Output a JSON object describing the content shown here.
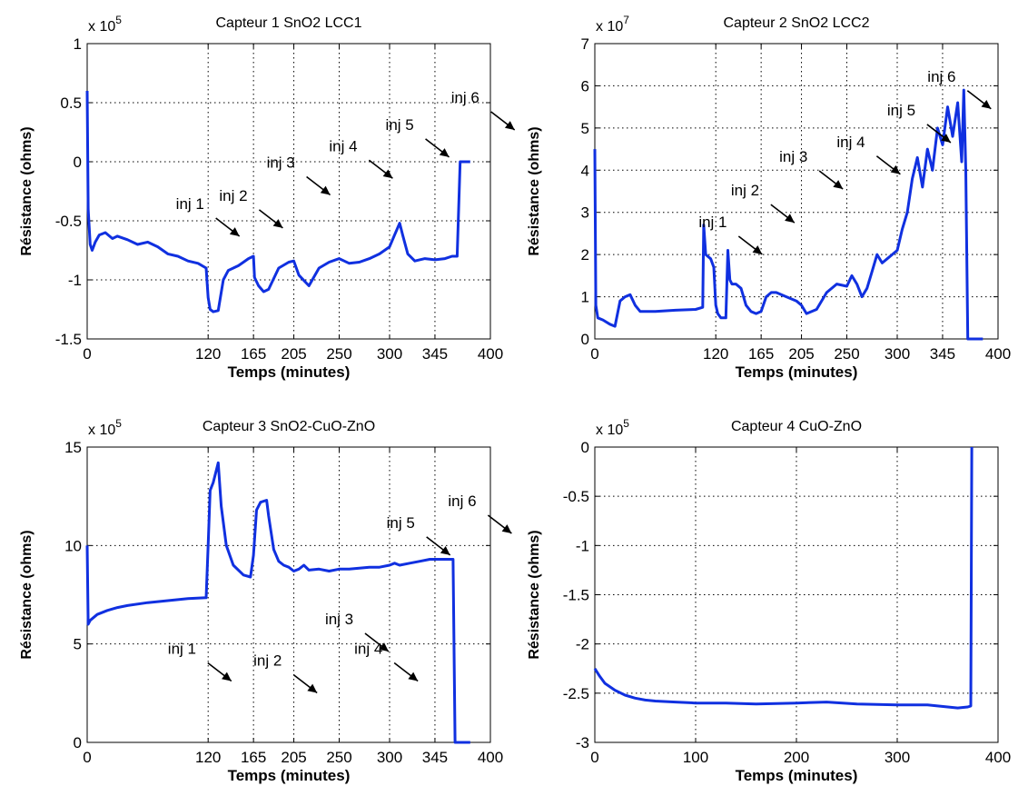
{
  "chart_data": [
    {
      "type": "line",
      "title": "Capteur 1 SnO2 LCC1",
      "exponent": "5",
      "xlabel": "Temps (minutes)",
      "ylabel": "Résistance (ohms)",
      "xlim": [
        0,
        400
      ],
      "ylim": [
        -1.5,
        1
      ],
      "xticks": [
        0,
        120,
        165,
        205,
        250,
        300,
        345,
        400
      ],
      "xtick_labels": [
        "0",
        "120",
        "165",
        "205",
        "250",
        "300",
        "345",
        "400"
      ],
      "yticks": [
        -1.5,
        -1,
        -0.5,
        0,
        0.5,
        1
      ],
      "ytick_labels": [
        "-1.5",
        "-1",
        "-0.5",
        "0",
        "0.5",
        "1"
      ],
      "grid": true,
      "series_color": "#1030e0",
      "series": [
        {
          "x": [
            0,
            1,
            3,
            5,
            8,
            12,
            18,
            25,
            30,
            40,
            50,
            60,
            70,
            80,
            90,
            100,
            110,
            118,
            120,
            122,
            125,
            130,
            135,
            140,
            145,
            150,
            155,
            160,
            165,
            166,
            170,
            175,
            180,
            190,
            200,
            205,
            210,
            220,
            230,
            240,
            250,
            255,
            260,
            270,
            280,
            290,
            300,
            305,
            310,
            313,
            318,
            325,
            335,
            345,
            355,
            362,
            367,
            370,
            372,
            380
          ],
          "y": [
            0.6,
            -0.4,
            -0.7,
            -0.75,
            -0.68,
            -0.62,
            -0.6,
            -0.65,
            -0.63,
            -0.66,
            -0.7,
            -0.68,
            -0.72,
            -0.78,
            -0.8,
            -0.84,
            -0.86,
            -0.9,
            -1.15,
            -1.25,
            -1.27,
            -1.26,
            -1.0,
            -0.92,
            -0.9,
            -0.88,
            -0.85,
            -0.82,
            -0.8,
            -0.98,
            -1.05,
            -1.1,
            -1.08,
            -0.9,
            -0.85,
            -0.84,
            -0.96,
            -1.05,
            -0.9,
            -0.85,
            -0.82,
            -0.84,
            -0.86,
            -0.85,
            -0.82,
            -0.78,
            -0.72,
            -0.62,
            -0.52,
            -0.62,
            -0.78,
            -0.84,
            -0.82,
            -0.83,
            -0.82,
            -0.8,
            -0.8,
            0,
            0,
            0
          ]
        }
      ],
      "annotations": [
        {
          "text": "inj 1",
          "x": 88,
          "y": -0.4
        },
        {
          "text": "inj 2",
          "x": 131,
          "y": -0.33
        },
        {
          "text": "inj 3",
          "x": 178,
          "y": -0.05
        },
        {
          "text": "inj 4",
          "x": 240,
          "y": 0.09
        },
        {
          "text": "inj 5",
          "x": 296,
          "y": 0.27
        },
        {
          "text": "inj 6",
          "x": 361,
          "y": 0.5
        }
      ]
    },
    {
      "type": "line",
      "title": "Capteur 2 SnO2 LCC2",
      "exponent": "7",
      "xlabel": "Temps (minutes)",
      "ylabel": "Résistance (ohms)",
      "xlim": [
        0,
        400
      ],
      "ylim": [
        0,
        7
      ],
      "xticks": [
        0,
        120,
        165,
        205,
        250,
        300,
        345,
        400
      ],
      "xtick_labels": [
        "0",
        "120",
        "165",
        "205",
        "250",
        "300",
        "345",
        "400"
      ],
      "yticks": [
        0,
        1,
        2,
        3,
        4,
        5,
        6,
        7
      ],
      "ytick_labels": [
        "0",
        "1",
        "2",
        "3",
        "4",
        "5",
        "6",
        "7"
      ],
      "grid": true,
      "series_color": "#1030e0",
      "series": [
        {
          "x": [
            0,
            1,
            3,
            8,
            15,
            20,
            25,
            30,
            35,
            40,
            45,
            50,
            60,
            80,
            100,
            107,
            108,
            110,
            115,
            118,
            120,
            122,
            125,
            130,
            132,
            134,
            136,
            140,
            145,
            150,
            155,
            160,
            165,
            170,
            175,
            180,
            190,
            200,
            205,
            210,
            220,
            230,
            240,
            250,
            255,
            260,
            265,
            270,
            275,
            280,
            285,
            290,
            295,
            300,
            305,
            310,
            315,
            320,
            325,
            330,
            335,
            340,
            345,
            350,
            355,
            360,
            364,
            366,
            368,
            370,
            375,
            385
          ],
          "y": [
            4.5,
            0.8,
            0.5,
            0.45,
            0.35,
            0.3,
            0.9,
            1.0,
            1.05,
            0.8,
            0.65,
            0.65,
            0.65,
            0.68,
            0.7,
            0.75,
            2.7,
            2.0,
            1.9,
            1.7,
            0.8,
            0.6,
            0.5,
            0.5,
            2.1,
            1.4,
            1.3,
            1.3,
            1.2,
            0.8,
            0.65,
            0.6,
            0.65,
            1.0,
            1.1,
            1.1,
            1.0,
            0.9,
            0.8,
            0.6,
            0.7,
            1.1,
            1.3,
            1.25,
            1.5,
            1.3,
            1.0,
            1.2,
            1.6,
            2.0,
            1.8,
            1.9,
            2.0,
            2.1,
            2.6,
            3.0,
            3.8,
            4.3,
            3.6,
            4.5,
            4.0,
            5.0,
            4.6,
            5.5,
            4.8,
            5.6,
            4.2,
            5.9,
            4.0,
            0,
            0,
            0
          ]
        }
      ],
      "annotations": [
        {
          "text": "inj 1",
          "x": 103,
          "y": 2.65
        },
        {
          "text": "inj 2",
          "x": 135,
          "y": 3.4
        },
        {
          "text": "inj 3",
          "x": 183,
          "y": 4.2
        },
        {
          "text": "inj 4",
          "x": 240,
          "y": 4.55
        },
        {
          "text": "inj 5",
          "x": 290,
          "y": 5.3
        },
        {
          "text": "inj 6",
          "x": 330,
          "y": 6.1
        }
      ]
    },
    {
      "type": "line",
      "title": "Capteur 3 SnO2-CuO-ZnO",
      "exponent": "5",
      "xlabel": "Temps (minutes)",
      "ylabel": "Résistance (ohms)",
      "xlim": [
        0,
        400
      ],
      "ylim": [
        0,
        15
      ],
      "xticks": [
        0,
        120,
        165,
        205,
        250,
        300,
        345,
        400
      ],
      "xtick_labels": [
        "0",
        "120",
        "165",
        "205",
        "250",
        "300",
        "345",
        "400"
      ],
      "yticks": [
        0,
        5,
        10,
        15
      ],
      "ytick_labels": [
        "0",
        "5",
        "10",
        "15"
      ],
      "grid": true,
      "series_color": "#1030e0",
      "series": [
        {
          "x": [
            0,
            1,
            3,
            10,
            20,
            30,
            40,
            60,
            80,
            100,
            118,
            120,
            122,
            125,
            128,
            130,
            133,
            138,
            145,
            155,
            162,
            165,
            168,
            172,
            178,
            180,
            185,
            190,
            195,
            200,
            205,
            210,
            215,
            220,
            230,
            240,
            250,
            260,
            270,
            280,
            290,
            300,
            305,
            310,
            320,
            330,
            340,
            350,
            360,
            363,
            365,
            368,
            380
          ],
          "y": [
            10,
            6.0,
            6.2,
            6.5,
            6.7,
            6.85,
            6.95,
            7.1,
            7.2,
            7.3,
            7.35,
            10,
            12.8,
            13.2,
            13.8,
            14.2,
            12.0,
            10.0,
            9.0,
            8.5,
            8.4,
            9.5,
            11.8,
            12.2,
            12.3,
            11.5,
            9.8,
            9.2,
            9.0,
            8.9,
            8.7,
            8.8,
            9.0,
            8.75,
            8.8,
            8.7,
            8.8,
            8.8,
            8.85,
            8.9,
            8.9,
            9.0,
            9.1,
            9.0,
            9.1,
            9.2,
            9.3,
            9.3,
            9.3,
            9.3,
            0,
            0,
            0
          ]
        }
      ],
      "annotations": [
        {
          "text": "inj 1",
          "x": 80,
          "y": 4.5
        },
        {
          "text": "inj 2",
          "x": 165,
          "y": 3.9
        },
        {
          "text": "inj 3",
          "x": 236,
          "y": 6.0
        },
        {
          "text": "inj 4",
          "x": 265,
          "y": 4.5
        },
        {
          "text": "inj 5",
          "x": 297,
          "y": 10.9
        },
        {
          "text": "inj 6",
          "x": 358,
          "y": 12.0
        }
      ]
    },
    {
      "type": "line",
      "title": "Capteur 4 CuO-ZnO",
      "exponent": "5",
      "xlabel": "Temps (minutes)",
      "ylabel": "Résistance (ohms)",
      "xlim": [
        0,
        400
      ],
      "ylim": [
        -3,
        0
      ],
      "xticks": [
        0,
        100,
        200,
        300,
        400
      ],
      "xtick_labels": [
        "0",
        "100",
        "200",
        "300",
        "400"
      ],
      "yticks": [
        -3,
        -2.5,
        -2,
        -1.5,
        -1,
        -0.5,
        0
      ],
      "ytick_labels": [
        "-3",
        "-2.5",
        "-2",
        "-1.5",
        "-1",
        "-0.5",
        "0"
      ],
      "grid": true,
      "series_color": "#1030e0",
      "series": [
        {
          "x": [
            0,
            5,
            10,
            20,
            30,
            40,
            50,
            60,
            80,
            100,
            130,
            160,
            200,
            230,
            260,
            300,
            330,
            350,
            360,
            370,
            373,
            374
          ],
          "y": [
            -2.25,
            -2.33,
            -2.4,
            -2.47,
            -2.52,
            -2.55,
            -2.57,
            -2.58,
            -2.59,
            -2.6,
            -2.6,
            -2.61,
            -2.6,
            -2.59,
            -2.61,
            -2.62,
            -2.62,
            -2.64,
            -2.65,
            -2.64,
            -2.63,
            0
          ]
        }
      ],
      "annotations": []
    }
  ]
}
